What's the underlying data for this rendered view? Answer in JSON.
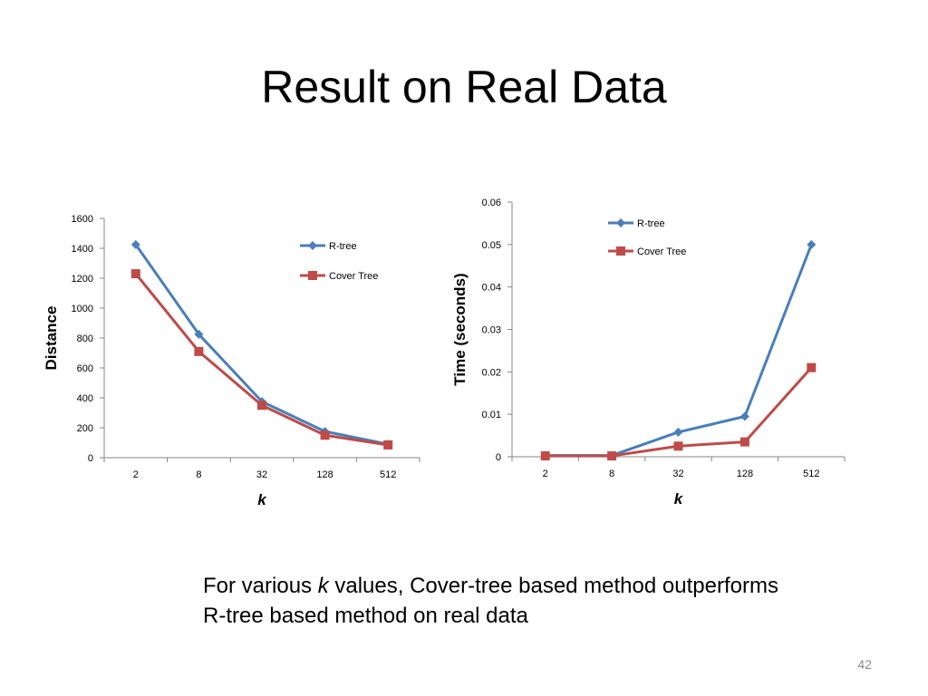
{
  "slide": {
    "title": "Result on Real Data",
    "caption_pre": "For various ",
    "caption_k": "k",
    "caption_post": " values, Cover-tree based method outperforms R-tree based method on real data",
    "page_number": "42"
  },
  "colors": {
    "rtree": "#4a7ebb",
    "covertree": "#be4b48",
    "axis": "#868686"
  },
  "chart_data": [
    {
      "type": "line",
      "title": "",
      "xlabel": "k",
      "ylabel": "Distance",
      "categories": [
        "2",
        "8",
        "32",
        "128",
        "512"
      ],
      "ylim": [
        0,
        1600
      ],
      "yticks": [
        "0",
        "200",
        "400",
        "600",
        "800",
        "1000",
        "1200",
        "1400",
        "1600"
      ],
      "grid": false,
      "legend": "upper-right",
      "series": [
        {
          "name": "R-tree",
          "marker": "diamond",
          "values": [
            1425,
            825,
            375,
            175,
            90
          ]
        },
        {
          "name": "Cover Tree",
          "marker": "square",
          "values": [
            1230,
            710,
            350,
            150,
            85
          ]
        }
      ]
    },
    {
      "type": "line",
      "title": "",
      "xlabel": "k",
      "ylabel": "Time (seconds)",
      "categories": [
        "2",
        "8",
        "32",
        "128",
        "512"
      ],
      "ylim": [
        0,
        0.06
      ],
      "yticks": [
        "0",
        "0.01",
        "0.02",
        "0.03",
        "0.04",
        "0.05",
        "0.06"
      ],
      "grid": false,
      "legend": "upper-left",
      "series": [
        {
          "name": "R-tree",
          "marker": "diamond",
          "values": [
            0.0003,
            0.0003,
            0.0058,
            0.0095,
            0.05
          ]
        },
        {
          "name": "Cover Tree",
          "marker": "square",
          "values": [
            0.0002,
            0.0002,
            0.0025,
            0.0035,
            0.021
          ]
        }
      ]
    }
  ]
}
